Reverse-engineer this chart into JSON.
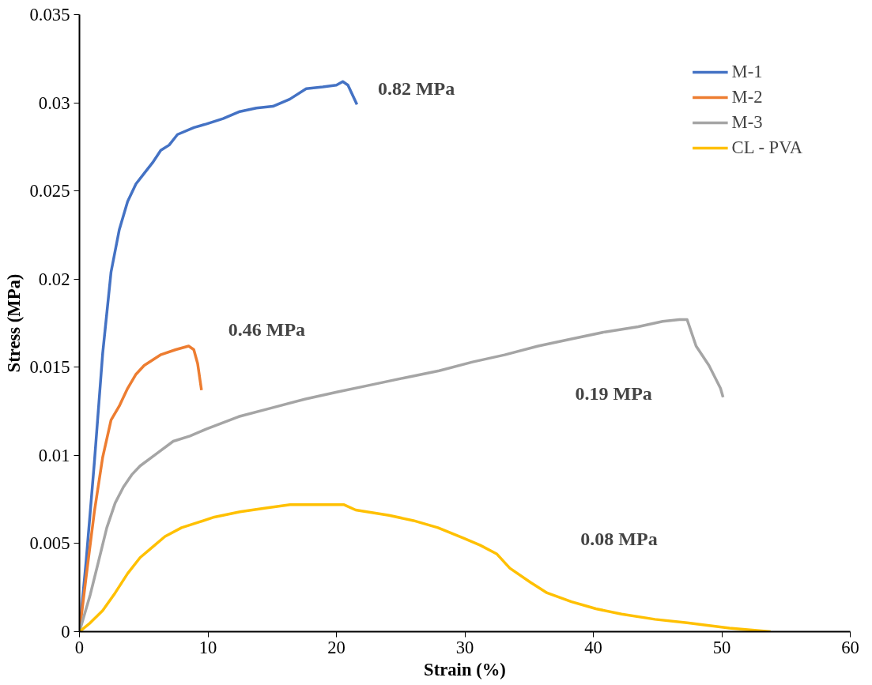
{
  "chart_data": {
    "type": "line",
    "xlabel": "Strain (%)",
    "ylabel": "Stress (MPa)",
    "xlim": [
      0,
      60
    ],
    "xticks": [
      0,
      10,
      20,
      30,
      40,
      50,
      60
    ],
    "ylim": [
      0,
      0.035
    ],
    "yticks": [
      0,
      0.005,
      0.01,
      0.015,
      0.02,
      0.025,
      0.03,
      0.035
    ],
    "grid": false,
    "legend": "top right",
    "marker": "none",
    "line_style": "solid",
    "series": [
      {
        "name": "M-1",
        "color": "#4472c4",
        "x": [
          0,
          0.52,
          1.16,
          1.81,
          2.46,
          3.1,
          3.75,
          4.4,
          5.04,
          5.69,
          6.33,
          6.98,
          7.63,
          8.92,
          9.89,
          11.18,
          12.48,
          13.77,
          15.06,
          16.36,
          17.65,
          18.94,
          20.0,
          20.5,
          20.9,
          21.6
        ],
        "values": [
          0,
          0.004,
          0.0096,
          0.0158,
          0.0204,
          0.0228,
          0.0244,
          0.0254,
          0.026,
          0.0266,
          0.0273,
          0.0276,
          0.0282,
          0.0286,
          0.0288,
          0.0291,
          0.0295,
          0.0297,
          0.0298,
          0.0302,
          0.0308,
          0.0309,
          0.031,
          0.0312,
          0.031,
          0.0299
        ]
      },
      {
        "name": "M-2",
        "color": "#ed7d31",
        "x": [
          0,
          0.52,
          1.16,
          1.81,
          2.46,
          3.1,
          3.75,
          4.4,
          5.04,
          6.3,
          7.5,
          8.5,
          8.9,
          9.2,
          9.5
        ],
        "values": [
          0,
          0.0031,
          0.0068,
          0.0099,
          0.012,
          0.0128,
          0.0138,
          0.0146,
          0.0151,
          0.0157,
          0.016,
          0.0162,
          0.016,
          0.0152,
          0.0137
        ]
      },
      {
        "name": "M-3",
        "color": "#a5a5a5",
        "x": [
          0,
          0.84,
          1.49,
          2.13,
          2.78,
          3.42,
          4.07,
          4.72,
          6.01,
          7.3,
          8.6,
          9.9,
          12.4,
          15.0,
          17.6,
          20.1,
          22.7,
          25.3,
          28.0,
          30.6,
          33.1,
          35.7,
          38.3,
          40.9,
          43.5,
          45.4,
          46.7,
          47.3,
          48.0,
          49.0,
          49.9,
          50.1
        ],
        "values": [
          0,
          0.0021,
          0.004,
          0.0059,
          0.0073,
          0.0082,
          0.0089,
          0.0094,
          0.0101,
          0.0108,
          0.0111,
          0.0115,
          0.0122,
          0.0127,
          0.0132,
          0.0136,
          0.014,
          0.0144,
          0.0148,
          0.0153,
          0.0157,
          0.0162,
          0.0166,
          0.017,
          0.0173,
          0.0176,
          0.0177,
          0.0177,
          0.0162,
          0.0151,
          0.0138,
          0.0133
        ]
      },
      {
        "name": "CL - PVA",
        "color": "#ffc000",
        "x": [
          0,
          0.84,
          1.81,
          2.78,
          3.75,
          4.72,
          5.69,
          6.66,
          7.95,
          9.24,
          10.5,
          12.5,
          14.4,
          16.4,
          18.3,
          20.6,
          21.5,
          24.1,
          26.0,
          27.9,
          29.9,
          31.2,
          32.5,
          33.5,
          35.1,
          36.4,
          38.3,
          40.2,
          42.2,
          44.8,
          47.3,
          50.6,
          53.8
        ],
        "values": [
          0,
          0.0005,
          0.0012,
          0.0022,
          0.0033,
          0.0042,
          0.0048,
          0.0054,
          0.0059,
          0.0062,
          0.0065,
          0.0068,
          0.007,
          0.0072,
          0.0072,
          0.0072,
          0.0069,
          0.0066,
          0.0063,
          0.0059,
          0.0053,
          0.0049,
          0.0044,
          0.0036,
          0.0028,
          0.0022,
          0.0017,
          0.0013,
          0.001,
          0.0007,
          0.0005,
          0.0002,
          0
        ]
      }
    ],
    "annotations": [
      "0.82 MPa",
      "0.46 MPa",
      "0.19 MPa",
      "0.08 MPa"
    ]
  }
}
